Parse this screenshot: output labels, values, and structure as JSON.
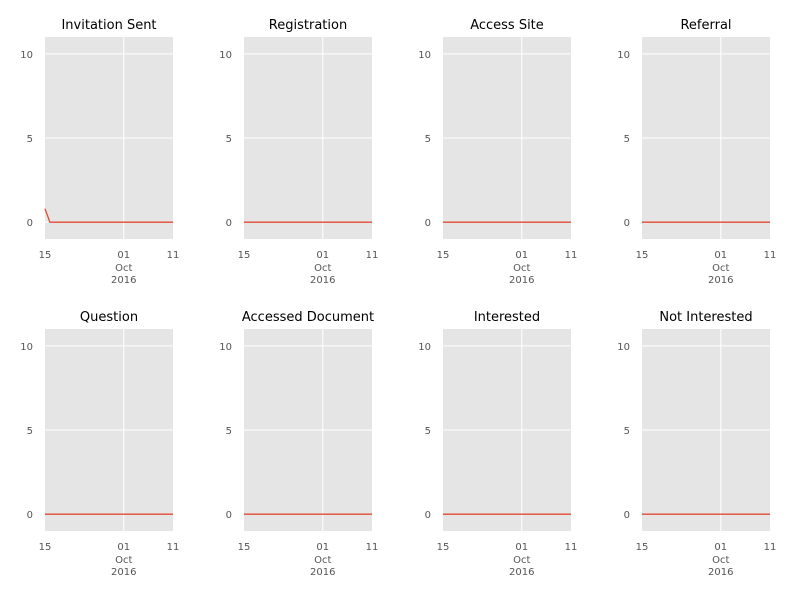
{
  "chart_data": [
    {
      "type": "line",
      "title": "Invitation Sent",
      "x": [
        "2016-09-15",
        "2016-09-16",
        "2016-10-01",
        "2016-10-11"
      ],
      "series": [
        {
          "values": [
            0.8,
            0,
            0,
            0
          ]
        }
      ],
      "ylim": [
        -1,
        11
      ],
      "yticks": [
        "0",
        "5",
        "10"
      ],
      "xticks": [
        {
          "label": "15"
        },
        {
          "label": "01",
          "sub": [
            "Oct",
            "2016"
          ]
        },
        {
          "label": "11"
        }
      ],
      "grid": true,
      "line_color": "#e24a33"
    },
    {
      "type": "line",
      "title": "Registration",
      "x": [
        "2016-09-15",
        "2016-10-01",
        "2016-10-11"
      ],
      "series": [
        {
          "values": [
            0,
            0,
            0
          ]
        }
      ],
      "ylim": [
        -1,
        11
      ],
      "yticks": [
        "0",
        "5",
        "10"
      ],
      "xticks": [
        {
          "label": "15"
        },
        {
          "label": "01",
          "sub": [
            "Oct",
            "2016"
          ]
        },
        {
          "label": "11"
        }
      ],
      "grid": true,
      "line_color": "#e24a33"
    },
    {
      "type": "line",
      "title": "Access Site",
      "x": [
        "2016-09-15",
        "2016-10-01",
        "2016-10-11"
      ],
      "series": [
        {
          "values": [
            0,
            0,
            0
          ]
        }
      ],
      "ylim": [
        -1,
        11
      ],
      "yticks": [
        "0",
        "5",
        "10"
      ],
      "xticks": [
        {
          "label": "15"
        },
        {
          "label": "01",
          "sub": [
            "Oct",
            "2016"
          ]
        },
        {
          "label": "11"
        }
      ],
      "grid": true,
      "line_color": "#e24a33"
    },
    {
      "type": "line",
      "title": "Referral",
      "x": [
        "2016-09-15",
        "2016-10-01",
        "2016-10-11"
      ],
      "series": [
        {
          "values": [
            0,
            0,
            0
          ]
        }
      ],
      "ylim": [
        -1,
        11
      ],
      "yticks": [
        "0",
        "5",
        "10"
      ],
      "xticks": [
        {
          "label": "15"
        },
        {
          "label": "01",
          "sub": [
            "Oct",
            "2016"
          ]
        },
        {
          "label": "11"
        }
      ],
      "grid": true,
      "line_color": "#e24a33"
    },
    {
      "type": "line",
      "title": "Question",
      "x": [
        "2016-09-15",
        "2016-10-01",
        "2016-10-11"
      ],
      "series": [
        {
          "values": [
            0,
            0,
            0
          ]
        }
      ],
      "ylim": [
        -1,
        11
      ],
      "yticks": [
        "0",
        "5",
        "10"
      ],
      "xticks": [
        {
          "label": "15"
        },
        {
          "label": "01",
          "sub": [
            "Oct",
            "2016"
          ]
        },
        {
          "label": "11"
        }
      ],
      "grid": true,
      "line_color": "#e24a33"
    },
    {
      "type": "line",
      "title": "Accessed Document",
      "x": [
        "2016-09-15",
        "2016-10-01",
        "2016-10-11"
      ],
      "series": [
        {
          "values": [
            0,
            0,
            0
          ]
        }
      ],
      "ylim": [
        -1,
        11
      ],
      "yticks": [
        "0",
        "5",
        "10"
      ],
      "xticks": [
        {
          "label": "15"
        },
        {
          "label": "01",
          "sub": [
            "Oct",
            "2016"
          ]
        },
        {
          "label": "11"
        }
      ],
      "grid": true,
      "line_color": "#e24a33"
    },
    {
      "type": "line",
      "title": "Interested",
      "x": [
        "2016-09-15",
        "2016-10-01",
        "2016-10-11"
      ],
      "series": [
        {
          "values": [
            0,
            0,
            0
          ]
        }
      ],
      "ylim": [
        -1,
        11
      ],
      "yticks": [
        "0",
        "5",
        "10"
      ],
      "xticks": [
        {
          "label": "15"
        },
        {
          "label": "01",
          "sub": [
            "Oct",
            "2016"
          ]
        },
        {
          "label": "11"
        }
      ],
      "grid": true,
      "line_color": "#e24a33"
    },
    {
      "type": "line",
      "title": "Not Interested",
      "x": [
        "2016-09-15",
        "2016-10-01",
        "2016-10-11"
      ],
      "series": [
        {
          "values": [
            0,
            0,
            0
          ]
        }
      ],
      "ylim": [
        -1,
        11
      ],
      "yticks": [
        "0",
        "5",
        "10"
      ],
      "xticks": [
        {
          "label": "15"
        },
        {
          "label": "01",
          "sub": [
            "Oct",
            "2016"
          ]
        },
        {
          "label": "11"
        }
      ],
      "grid": true,
      "line_color": "#e24a33"
    }
  ]
}
